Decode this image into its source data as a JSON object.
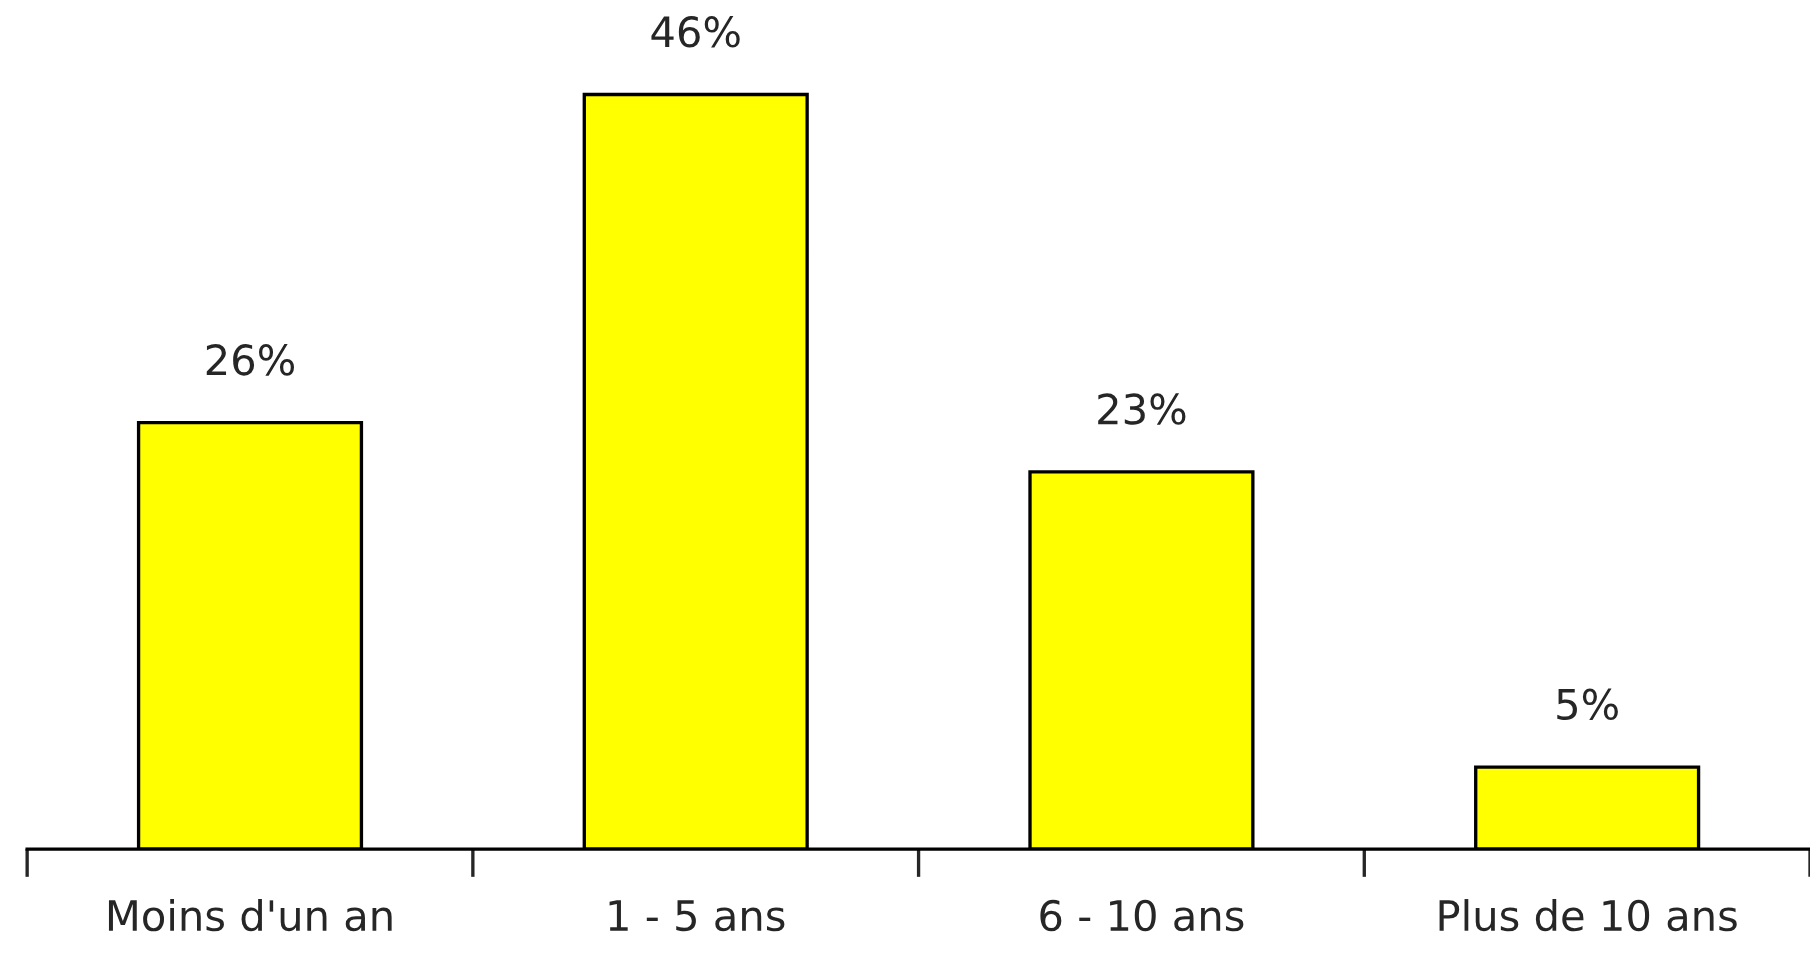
{
  "chart_data": {
    "type": "bar",
    "categories": [
      "Moins d'un an",
      "1 - 5 ans",
      "6 - 10 ans",
      "Plus de 10 ans"
    ],
    "values": [
      26,
      46,
      23,
      5
    ],
    "value_labels": [
      "26%",
      "46%",
      "23%",
      "5%"
    ],
    "color": "#ffff00",
    "legend": false,
    "grid": false
  }
}
